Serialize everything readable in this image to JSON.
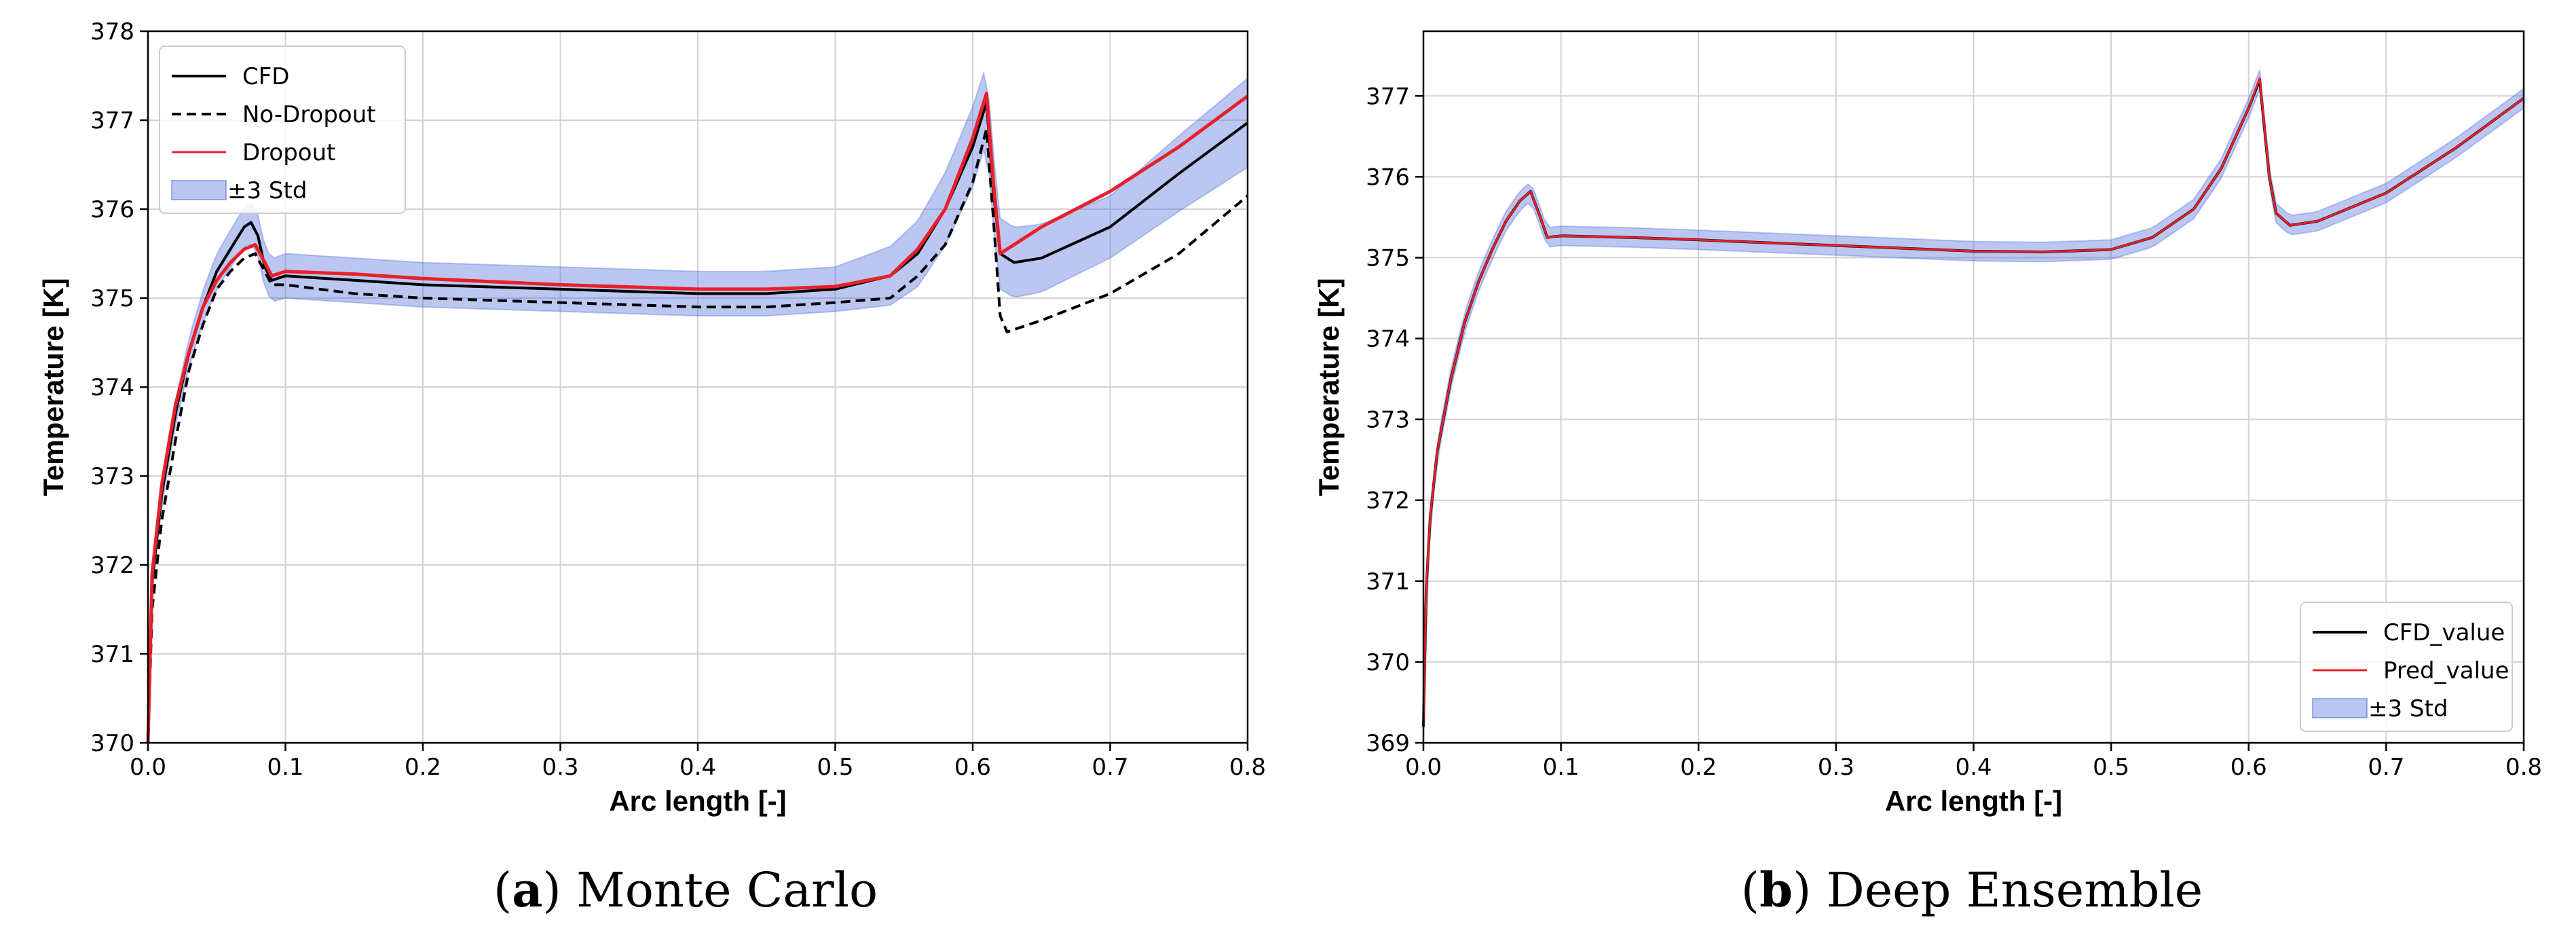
{
  "colors": {
    "cfd": "#000000",
    "pred": "#e8202a",
    "band": "#4b6bd9",
    "grid": "#d2d2d2"
  },
  "captions": [
    {
      "letter": "a",
      "text": " Monte Carlo",
      "open": "(",
      "close": ")"
    },
    {
      "letter": "b",
      "text": " Deep Ensemble",
      "open": "(",
      "close": ")"
    }
  ],
  "chart_data": [
    {
      "type": "line",
      "title": "",
      "xlabel": "Arc length [-]",
      "ylabel": "Temperature [K]",
      "xlim": [
        0.0,
        0.8
      ],
      "ylim": [
        370,
        378
      ],
      "xticks": [
        0.0,
        0.1,
        0.2,
        0.3,
        0.4,
        0.5,
        0.6,
        0.7,
        0.8
      ],
      "yticks": [
        370,
        371,
        372,
        373,
        374,
        375,
        376,
        377,
        378
      ],
      "xtick_labels": [
        "0.0",
        "0.1",
        "0.2",
        "0.3",
        "0.4",
        "0.5",
        "0.6",
        "0.7",
        "0.8"
      ],
      "ytick_labels": [
        "370",
        "371",
        "372",
        "373",
        "374",
        "375",
        "376",
        "377",
        "378"
      ],
      "grid": true,
      "legend_position": "top-left",
      "legend": [
        "CFD",
        "No-Dropout",
        "Dropout",
        "±3 Std"
      ],
      "series": [
        {
          "name": "CFD",
          "style": "solid",
          "color": "#000000",
          "x": [
            0.0,
            0.003,
            0.01,
            0.02,
            0.03,
            0.04,
            0.05,
            0.06,
            0.07,
            0.075,
            0.08,
            0.085,
            0.09,
            0.1,
            0.15,
            0.2,
            0.3,
            0.4,
            0.45,
            0.5,
            0.54,
            0.56,
            0.58,
            0.6,
            0.61,
            0.615,
            0.62,
            0.63,
            0.65,
            0.7,
            0.75,
            0.8
          ],
          "y": [
            370.0,
            371.8,
            372.8,
            373.7,
            374.4,
            374.9,
            375.3,
            375.55,
            375.8,
            375.85,
            375.7,
            375.35,
            375.2,
            375.25,
            375.2,
            375.15,
            375.1,
            375.05,
            375.05,
            375.1,
            375.25,
            375.5,
            376.0,
            376.7,
            377.2,
            376.2,
            375.5,
            375.4,
            375.45,
            375.8,
            376.4,
            376.97
          ]
        },
        {
          "name": "No-Dropout",
          "style": "dashed",
          "color": "#000000",
          "x": [
            0.0,
            0.003,
            0.01,
            0.02,
            0.03,
            0.04,
            0.05,
            0.06,
            0.07,
            0.078,
            0.085,
            0.09,
            0.1,
            0.15,
            0.2,
            0.3,
            0.4,
            0.45,
            0.5,
            0.54,
            0.56,
            0.58,
            0.6,
            0.61,
            0.615,
            0.62,
            0.625,
            0.65,
            0.7,
            0.75,
            0.8
          ],
          "y": [
            370.0,
            371.5,
            372.5,
            373.4,
            374.2,
            374.7,
            375.1,
            375.3,
            375.45,
            375.5,
            375.3,
            375.15,
            375.15,
            375.05,
            375.0,
            374.95,
            374.9,
            374.9,
            374.95,
            375.0,
            375.25,
            375.6,
            376.3,
            376.9,
            375.9,
            374.8,
            374.62,
            374.75,
            375.05,
            375.5,
            376.15
          ]
        },
        {
          "name": "Dropout",
          "style": "solid",
          "color": "#e8202a",
          "x": [
            0.0,
            0.003,
            0.01,
            0.02,
            0.03,
            0.04,
            0.05,
            0.06,
            0.07,
            0.078,
            0.085,
            0.09,
            0.1,
            0.15,
            0.2,
            0.3,
            0.4,
            0.45,
            0.5,
            0.54,
            0.56,
            0.58,
            0.6,
            0.61,
            0.615,
            0.62,
            0.63,
            0.65,
            0.7,
            0.75,
            0.8
          ],
          "y": [
            370.0,
            371.9,
            372.9,
            373.8,
            374.4,
            374.9,
            375.2,
            375.4,
            375.55,
            375.6,
            375.4,
            375.25,
            375.3,
            375.27,
            375.22,
            375.15,
            375.1,
            375.1,
            375.13,
            375.25,
            375.55,
            376.0,
            376.8,
            377.3,
            376.3,
            375.5,
            375.6,
            375.8,
            376.2,
            376.7,
            377.27
          ]
        }
      ],
      "band": {
        "name": "±3 Std",
        "half_width_x": [
          0.0,
          0.05,
          0.1,
          0.5,
          0.6,
          0.62,
          0.7,
          0.8
        ],
        "half_width": [
          0.1,
          0.2,
          0.25,
          0.25,
          0.45,
          0.4,
          0.35,
          0.5
        ]
      }
    },
    {
      "type": "line",
      "title": "",
      "xlabel": "Arc length [-]",
      "ylabel": "Temperature [K]",
      "xlim": [
        0.0,
        0.8
      ],
      "ylim": [
        369,
        377.8
      ],
      "xticks": [
        0.0,
        0.1,
        0.2,
        0.3,
        0.4,
        0.5,
        0.6,
        0.7,
        0.8
      ],
      "yticks": [
        369,
        370,
        371,
        372,
        373,
        374,
        375,
        376,
        377
      ],
      "xtick_labels": [
        "0.0",
        "0.1",
        "0.2",
        "0.3",
        "0.4",
        "0.5",
        "0.6",
        "0.7",
        "0.8"
      ],
      "ytick_labels": [
        "369",
        "370",
        "371",
        "372",
        "373",
        "374",
        "375",
        "376",
        "377"
      ],
      "grid": true,
      "legend_position": "bottom-right",
      "legend": [
        "CFD_value",
        "Pred_value",
        "±3 Std"
      ],
      "series": [
        {
          "name": "CFD_value",
          "style": "solid",
          "color": "#000000",
          "x": [
            0.0,
            0.002,
            0.005,
            0.01,
            0.02,
            0.03,
            0.04,
            0.05,
            0.06,
            0.07,
            0.078,
            0.085,
            0.09,
            0.1,
            0.15,
            0.2,
            0.3,
            0.4,
            0.45,
            0.5,
            0.53,
            0.56,
            0.58,
            0.6,
            0.608,
            0.615,
            0.62,
            0.63,
            0.65,
            0.7,
            0.75,
            0.8
          ],
          "y": [
            369.2,
            370.9,
            371.8,
            372.6,
            373.5,
            374.2,
            374.7,
            375.1,
            375.45,
            375.7,
            375.82,
            375.5,
            375.25,
            375.27,
            375.25,
            375.22,
            375.15,
            375.08,
            375.07,
            375.1,
            375.25,
            375.6,
            376.1,
            376.85,
            377.2,
            376.0,
            375.55,
            375.4,
            375.45,
            375.8,
            376.35,
            376.97
          ]
        },
        {
          "name": "Pred_value",
          "style": "solid",
          "color": "#e8202a",
          "x": [
            0.0,
            0.002,
            0.005,
            0.01,
            0.02,
            0.03,
            0.04,
            0.05,
            0.06,
            0.07,
            0.078,
            0.085,
            0.09,
            0.1,
            0.15,
            0.2,
            0.3,
            0.4,
            0.45,
            0.5,
            0.53,
            0.56,
            0.58,
            0.6,
            0.608,
            0.615,
            0.62,
            0.63,
            0.65,
            0.7,
            0.75,
            0.8
          ],
          "y": [
            369.2,
            370.9,
            371.8,
            372.6,
            373.5,
            374.2,
            374.7,
            375.1,
            375.45,
            375.7,
            375.82,
            375.5,
            375.25,
            375.27,
            375.25,
            375.22,
            375.15,
            375.08,
            375.07,
            375.1,
            375.25,
            375.6,
            376.1,
            376.85,
            377.22,
            376.0,
            375.55,
            375.4,
            375.45,
            375.8,
            376.35,
            376.97
          ]
        }
      ],
      "band": {
        "name": "±3 Std",
        "half_width_x": [
          0.0,
          0.1,
          0.6,
          0.8
        ],
        "half_width": [
          0.12,
          0.12,
          0.12,
          0.12
        ]
      }
    }
  ]
}
